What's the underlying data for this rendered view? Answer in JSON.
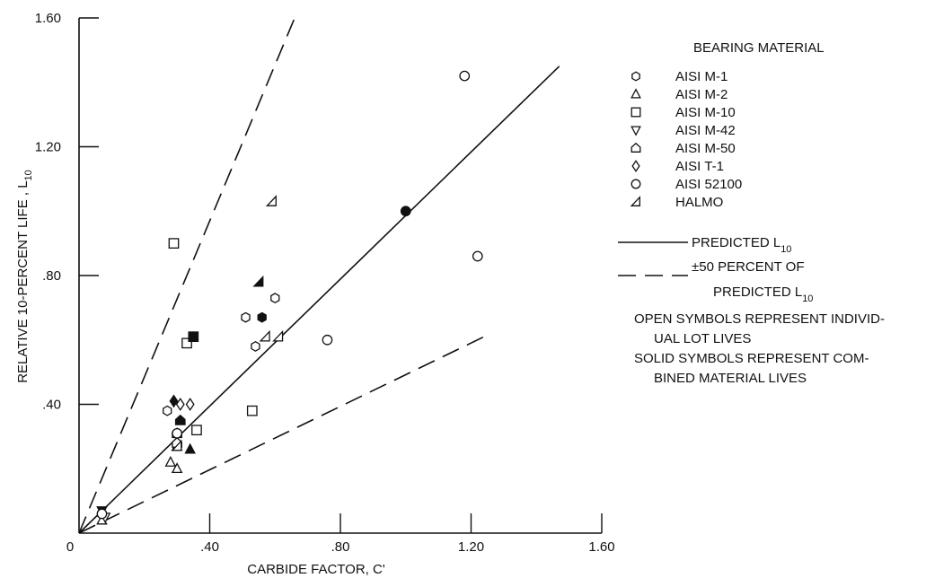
{
  "chart_data": {
    "type": "scatter",
    "xlabel": "CARBIDE FACTOR, C'",
    "ylabel": "RELATIVE 10-PERCENT LIFE , L",
    "ylabel_sub": "10",
    "xlim": [
      0,
      1.6
    ],
    "ylim": [
      0,
      1.6
    ],
    "x_ticks": [
      0,
      0.4,
      0.8,
      1.2,
      1.6
    ],
    "x_tick_labels": [
      "0",
      ".40",
      ".80",
      "1.20",
      "1.60"
    ],
    "y_ticks": [
      0.4,
      0.8,
      1.2,
      1.6
    ],
    "y_tick_labels": [
      ".40",
      ".80",
      "1.20",
      "1.60"
    ],
    "grid": false,
    "legend": {
      "title": "BEARING MATERIAL",
      "position": "right",
      "entries": [
        {
          "name": "AISI M-1",
          "marker": "hexagon"
        },
        {
          "name": "AISI M-2",
          "marker": "triangle-up"
        },
        {
          "name": "AISI M-10",
          "marker": "square"
        },
        {
          "name": "AISI M-42",
          "marker": "triangle-down"
        },
        {
          "name": "AISI M-50",
          "marker": "house"
        },
        {
          "name": "AISI T-1",
          "marker": "diamond"
        },
        {
          "name": "AISI 52100",
          "marker": "circle"
        },
        {
          "name": "HALMO",
          "marker": "triangle-left"
        }
      ],
      "predicted_label": "PREDICTED L",
      "predicted_sub": "10",
      "band_label_1": "±50 PERCENT OF",
      "band_label_2": "PREDICTED L",
      "band_sub": "10"
    },
    "notes": [
      "OPEN SYMBOLS REPRESENT INDIVID-",
      "UAL LOT LIVES",
      "SOLID SYMBOLS REPRESENT COM-",
      "BINED MATERIAL LIVES"
    ],
    "lines": [
      {
        "style": "solid",
        "points": [
          [
            0,
            0
          ],
          [
            1.47,
            1.45
          ]
        ]
      },
      {
        "style": "dashed",
        "points": [
          [
            0,
            0
          ],
          [
            0.66,
            1.6
          ]
        ]
      },
      {
        "style": "dashed",
        "points": [
          [
            0,
            0
          ],
          [
            1.26,
            0.62
          ]
        ]
      }
    ],
    "points": [
      {
        "material": "AISI M-1",
        "marker": "hexagon",
        "x": 0.6,
        "y": 0.73,
        "solid": false
      },
      {
        "material": "AISI M-1",
        "marker": "hexagon",
        "x": 0.51,
        "y": 0.67,
        "solid": false
      },
      {
        "material": "AISI M-1",
        "marker": "hexagon",
        "x": 0.56,
        "y": 0.67,
        "solid": true
      },
      {
        "material": "AISI M-1",
        "marker": "hexagon",
        "x": 0.54,
        "y": 0.58,
        "solid": false
      },
      {
        "material": "AISI M-1",
        "marker": "hexagon",
        "x": 0.27,
        "y": 0.38,
        "solid": false
      },
      {
        "material": "AISI M-1",
        "marker": "hexagon",
        "x": 0.07,
        "y": 0.06,
        "solid": false
      },
      {
        "material": "AISI M-2",
        "marker": "triangle-up",
        "x": 0.28,
        "y": 0.22,
        "solid": false
      },
      {
        "material": "AISI M-2",
        "marker": "triangle-up",
        "x": 0.3,
        "y": 0.2,
        "solid": false
      },
      {
        "material": "AISI M-2",
        "marker": "triangle-up",
        "x": 0.3,
        "y": 0.27,
        "solid": false
      },
      {
        "material": "AISI M-2",
        "marker": "triangle-up",
        "x": 0.34,
        "y": 0.26,
        "solid": true
      },
      {
        "material": "AISI M-2",
        "marker": "triangle-up",
        "x": 0.07,
        "y": 0.04,
        "solid": false
      },
      {
        "material": "AISI M-10",
        "marker": "square",
        "x": 0.29,
        "y": 0.9,
        "solid": false
      },
      {
        "material": "AISI M-10",
        "marker": "square",
        "x": 0.33,
        "y": 0.59,
        "solid": false
      },
      {
        "material": "AISI M-10",
        "marker": "square",
        "x": 0.35,
        "y": 0.61,
        "solid": true
      },
      {
        "material": "AISI M-10",
        "marker": "square",
        "x": 0.53,
        "y": 0.38,
        "solid": false
      },
      {
        "material": "AISI M-10",
        "marker": "square",
        "x": 0.36,
        "y": 0.32,
        "solid": false
      },
      {
        "material": "AISI M-42",
        "marker": "triangle-down",
        "x": 0.07,
        "y": 0.07,
        "solid": true
      },
      {
        "material": "AISI M-42",
        "marker": "triangle-down",
        "x": 0.08,
        "y": 0.05,
        "solid": false
      },
      {
        "material": "AISI M-50",
        "marker": "house",
        "x": 0.3,
        "y": 0.31,
        "solid": false
      },
      {
        "material": "AISI M-50",
        "marker": "house",
        "x": 0.31,
        "y": 0.35,
        "solid": true
      },
      {
        "material": "AISI M-50",
        "marker": "house",
        "x": 0.3,
        "y": 0.28,
        "solid": false
      },
      {
        "material": "AISI T-1",
        "marker": "diamond",
        "x": 0.29,
        "y": 0.41,
        "solid": true
      },
      {
        "material": "AISI T-1",
        "marker": "diamond",
        "x": 0.31,
        "y": 0.4,
        "solid": false
      },
      {
        "material": "AISI T-1",
        "marker": "diamond",
        "x": 0.34,
        "y": 0.4,
        "solid": false
      },
      {
        "material": "AISI 52100",
        "marker": "circle",
        "x": 1.18,
        "y": 1.42,
        "solid": false
      },
      {
        "material": "AISI 52100",
        "marker": "circle",
        "x": 1.22,
        "y": 0.86,
        "solid": false
      },
      {
        "material": "AISI 52100",
        "marker": "circle",
        "x": 0.76,
        "y": 0.6,
        "solid": false
      },
      {
        "material": "AISI 52100",
        "marker": "circle",
        "x": 1.0,
        "y": 1.0,
        "solid": true
      },
      {
        "material": "AISI 52100",
        "marker": "circle",
        "x": 0.3,
        "y": 0.31,
        "solid": false
      },
      {
        "material": "AISI 52100",
        "marker": "circle",
        "x": 0.07,
        "y": 0.06,
        "solid": false
      },
      {
        "material": "HALMO",
        "marker": "triangle-left",
        "x": 0.59,
        "y": 1.03,
        "solid": false
      },
      {
        "material": "HALMO",
        "marker": "triangle-left",
        "x": 0.55,
        "y": 0.78,
        "solid": true
      },
      {
        "material": "HALMO",
        "marker": "triangle-left",
        "x": 0.57,
        "y": 0.61,
        "solid": false
      },
      {
        "material": "HALMO",
        "marker": "triangle-left",
        "x": 0.61,
        "y": 0.61,
        "solid": false
      },
      {
        "material": "HALMO",
        "marker": "triangle-left",
        "x": 0.3,
        "y": 0.27,
        "solid": false
      }
    ]
  }
}
